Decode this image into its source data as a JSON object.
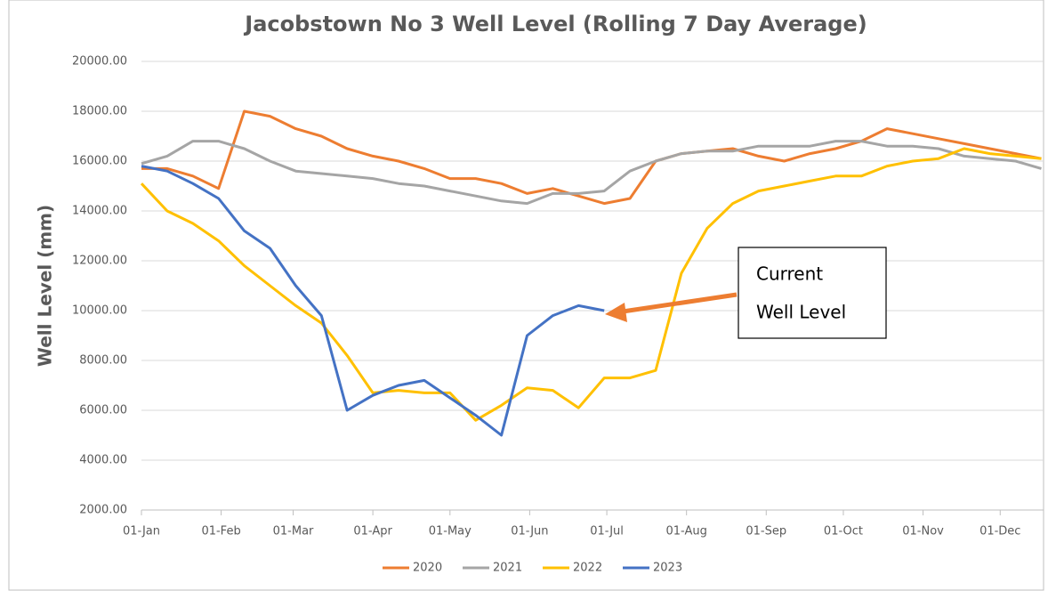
{
  "chart_data": {
    "type": "line",
    "title": "Jacobstown No 3 Well Level (Rolling 7 Day Average)",
    "y_label": "Well Level (mm)",
    "annotation": [
      "Current",
      "Well Level"
    ],
    "x": [
      0,
      10,
      20,
      30,
      40,
      50,
      60,
      70,
      80,
      90,
      100,
      110,
      120,
      130,
      140,
      150,
      160,
      170,
      180,
      190,
      200,
      210,
      220,
      230,
      240,
      250,
      260,
      270,
      280,
      290,
      300,
      310,
      320,
      330,
      340,
      350
    ],
    "xlim": [
      0,
      352
    ],
    "xticks": [
      {
        "value": 0,
        "label": "01-Jan"
      },
      {
        "value": 31,
        "label": "01-Feb"
      },
      {
        "value": 59,
        "label": "01-Mar"
      },
      {
        "value": 90,
        "label": "01-Apr"
      },
      {
        "value": 120,
        "label": "01-May"
      },
      {
        "value": 151,
        "label": "01-Jun"
      },
      {
        "value": 181,
        "label": "01-Jul"
      },
      {
        "value": 212,
        "label": "01-Aug"
      },
      {
        "value": 243,
        "label": "01-Sep"
      },
      {
        "value": 273,
        "label": "01-Oct"
      },
      {
        "value": 304,
        "label": "01-Nov"
      },
      {
        "value": 334,
        "label": "01-Dec"
      }
    ],
    "ylim": [
      2000,
      20000
    ],
    "yticks": [
      {
        "value": 2000,
        "label": "2000.00"
      },
      {
        "value": 4000,
        "label": "4000.00"
      },
      {
        "value": 6000,
        "label": "6000.00"
      },
      {
        "value": 8000,
        "label": "8000.00"
      },
      {
        "value": 10000,
        "label": "10000.00"
      },
      {
        "value": 12000,
        "label": "12000.00"
      },
      {
        "value": 14000,
        "label": "14000.00"
      },
      {
        "value": 16000,
        "label": "16000.00"
      },
      {
        "value": 18000,
        "label": "18000.00"
      },
      {
        "value": 20000,
        "label": "20000.00"
      }
    ],
    "grid": true,
    "legend": "bottom",
    "series": [
      {
        "name": "2020",
        "color": "#ED7D31",
        "values": [
          15700,
          15700,
          15400,
          14900,
          18000,
          17800,
          17300,
          17000,
          16500,
          16200,
          16000,
          15700,
          15300,
          15300,
          15100,
          14700,
          14900,
          14600,
          14300,
          14500,
          16000,
          16300,
          16400,
          16500,
          16200,
          16000,
          16300,
          16500,
          16800,
          17300,
          17100,
          16900,
          16700,
          16500,
          16300,
          16100
        ]
      },
      {
        "name": "2021",
        "color": "#A5A5A5",
        "values": [
          15900,
          16200,
          16800,
          16800,
          16500,
          16000,
          15600,
          15500,
          15400,
          15300,
          15100,
          15000,
          14800,
          14600,
          14400,
          14300,
          14700,
          14700,
          14800,
          15600,
          16000,
          16300,
          16400,
          16400,
          16600,
          16600,
          16600,
          16800,
          16800,
          16600,
          16600,
          16500,
          16200,
          16100,
          16000,
          15700
        ]
      },
      {
        "name": "2022",
        "color": "#FFC000",
        "values": [
          15100,
          14000,
          13500,
          12800,
          11800,
          11000,
          10200,
          9500,
          8200,
          6700,
          6800,
          6700,
          6700,
          5600,
          6200,
          6900,
          6800,
          6100,
          7300,
          7300,
          7600,
          11500,
          13300,
          14300,
          14800,
          15000,
          15200,
          15400,
          15400,
          15800,
          16000,
          16100,
          16500,
          16300,
          16200,
          16100
        ]
      },
      {
        "name": "2023",
        "color": "#4472C4",
        "values": [
          15800,
          15600,
          15100,
          14500,
          13200,
          12500,
          11000,
          9800,
          6000,
          6600,
          7000,
          7200,
          6500,
          5800,
          5000,
          9000,
          9800,
          10200,
          10000,
          null,
          null,
          null,
          null,
          null,
          null,
          null,
          null,
          null,
          null,
          null,
          null,
          null,
          null,
          null,
          null,
          null
        ]
      }
    ]
  }
}
